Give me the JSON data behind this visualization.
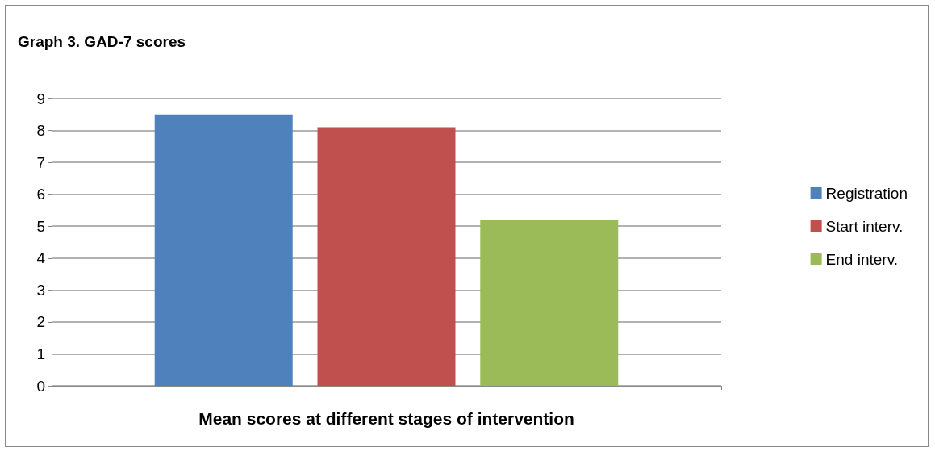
{
  "chart_data": {
    "type": "bar",
    "title": "Graph 3. GAD-7 scores",
    "xlabel": "Mean scores at different stages of intervention",
    "categories": [
      null
    ],
    "series": [
      {
        "name": "Registration",
        "color": "#4f81bd",
        "values": [
          8.5
        ]
      },
      {
        "name": "Start interv.",
        "color": "#c0504d",
        "values": [
          8.1
        ]
      },
      {
        "name": "End interv.",
        "color": "#9bbb59",
        "values": [
          5.2
        ]
      }
    ],
    "ylim": [
      0,
      9
    ],
    "yticks": [
      0,
      1,
      2,
      3,
      4,
      5,
      6,
      7,
      8,
      9
    ],
    "grid": "y",
    "legend": "right"
  }
}
